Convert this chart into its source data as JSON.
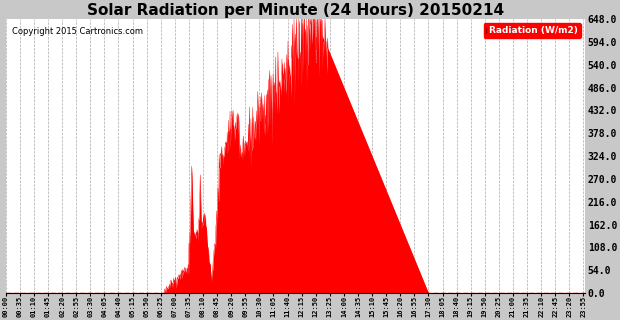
{
  "title": "Solar Radiation per Minute (24 Hours) 20150214",
  "copyright": "Copyright 2015 Cartronics.com",
  "legend_label": "Radiation (W/m2)",
  "ylim": [
    0.0,
    648.0
  ],
  "yticks": [
    0.0,
    54.0,
    108.0,
    162.0,
    216.0,
    270.0,
    324.0,
    378.0,
    432.0,
    486.0,
    540.0,
    594.0,
    648.0
  ],
  "fill_color": "#ff0000",
  "line_color": "#ff0000",
  "dashed_line_color": "#ff0000",
  "background_color": "#c8c8c8",
  "plot_bg_color": "#ffffff",
  "grid_color": "#aaaaaa",
  "title_fontsize": 11,
  "total_minutes": 1440,
  "xtick_interval": 35,
  "x_tick_labels": [
    "00:00",
    "00:35",
    "01:10",
    "01:45",
    "02:20",
    "02:55",
    "03:30",
    "04:05",
    "04:40",
    "05:15",
    "05:50",
    "06:25",
    "07:00",
    "07:35",
    "08:10",
    "08:45",
    "09:20",
    "09:55",
    "10:30",
    "11:05",
    "11:40",
    "12:15",
    "12:50",
    "13:25",
    "14:00",
    "14:35",
    "15:10",
    "15:45",
    "16:20",
    "16:55",
    "17:30",
    "18:05",
    "18:40",
    "19:15",
    "19:50",
    "20:25",
    "21:00",
    "21:35",
    "22:10",
    "22:45",
    "23:20",
    "23:55"
  ]
}
